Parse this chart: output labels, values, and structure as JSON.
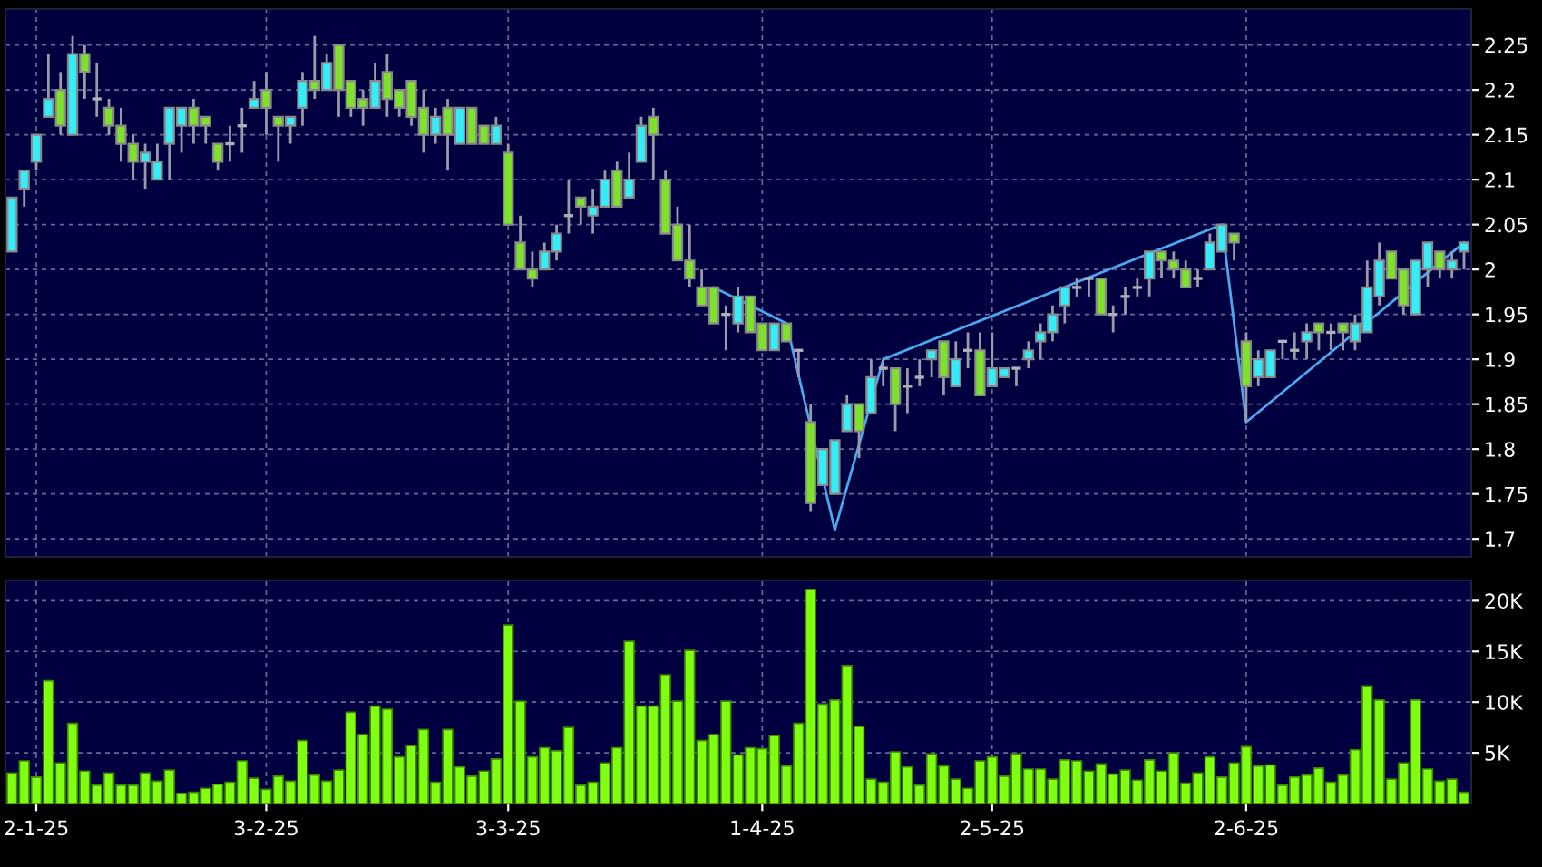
{
  "chart_data": [
    {
      "type": "candlestick",
      "categories": [
        null,
        null,
        null,
        null,
        null,
        null,
        null,
        null,
        null,
        null,
        null,
        null,
        null,
        null,
        null,
        null,
        null,
        null,
        null,
        null,
        null,
        null,
        null,
        null,
        null,
        null,
        null,
        null,
        null,
        null,
        null,
        null,
        null,
        null,
        null,
        null,
        null,
        null,
        null,
        null,
        null,
        null,
        null,
        null,
        null,
        null,
        null,
        null,
        null,
        null,
        null,
        null,
        null,
        null,
        null,
        null,
        null,
        null,
        null,
        null,
        null,
        null,
        null,
        null,
        null,
        null,
        null,
        null,
        null,
        null,
        null,
        null,
        null,
        null,
        null,
        null,
        null,
        null,
        null,
        null,
        null,
        null,
        null,
        null,
        null,
        null,
        null,
        null,
        null,
        null,
        null,
        null,
        null,
        null,
        null,
        null,
        null,
        null,
        null,
        null,
        null,
        null,
        null,
        null,
        null,
        null,
        null,
        null,
        null,
        null,
        null,
        null,
        null,
        null,
        null,
        null,
        null,
        null,
        null,
        null,
        null
      ],
      "ohlc": [
        [
          2.02,
          2.08,
          2.02,
          2.08
        ],
        [
          2.09,
          2.11,
          2.07,
          2.11
        ],
        [
          2.12,
          2.15,
          2.11,
          2.15
        ],
        [
          2.17,
          2.24,
          2.17,
          2.19
        ],
        [
          2.2,
          2.22,
          2.15,
          2.16
        ],
        [
          2.15,
          2.26,
          2.15,
          2.24
        ],
        [
          2.24,
          2.25,
          2.19,
          2.22
        ],
        [
          2.19,
          2.23,
          2.17,
          2.19
        ],
        [
          2.18,
          2.19,
          2.15,
          2.16
        ],
        [
          2.16,
          2.18,
          2.12,
          2.14
        ],
        [
          2.14,
          2.15,
          2.1,
          2.12
        ],
        [
          2.12,
          2.14,
          2.09,
          2.13
        ],
        [
          2.1,
          2.14,
          2.1,
          2.12
        ],
        [
          2.14,
          2.18,
          2.1,
          2.18
        ],
        [
          2.16,
          2.18,
          2.13,
          2.18
        ],
        [
          2.18,
          2.19,
          2.14,
          2.16
        ],
        [
          2.17,
          2.17,
          2.14,
          2.16
        ],
        [
          2.14,
          2.14,
          2.11,
          2.12
        ],
        [
          2.14,
          2.16,
          2.12,
          2.14
        ],
        [
          2.16,
          2.18,
          2.13,
          2.16
        ],
        [
          2.18,
          2.21,
          2.18,
          2.19
        ],
        [
          2.2,
          2.22,
          2.15,
          2.18
        ],
        [
          2.17,
          2.17,
          2.12,
          2.16
        ],
        [
          2.16,
          2.17,
          2.14,
          2.17
        ],
        [
          2.18,
          2.22,
          2.16,
          2.21
        ],
        [
          2.21,
          2.26,
          2.19,
          2.2
        ],
        [
          2.2,
          2.24,
          2.2,
          2.23
        ],
        [
          2.25,
          2.25,
          2.17,
          2.2
        ],
        [
          2.21,
          2.21,
          2.17,
          2.18
        ],
        [
          2.19,
          2.2,
          2.16,
          2.18
        ],
        [
          2.18,
          2.23,
          2.18,
          2.21
        ],
        [
          2.22,
          2.24,
          2.17,
          2.19
        ],
        [
          2.2,
          2.2,
          2.17,
          2.18
        ],
        [
          2.21,
          2.21,
          2.16,
          2.17
        ],
        [
          2.18,
          2.2,
          2.13,
          2.15
        ],
        [
          2.15,
          2.18,
          2.14,
          2.17
        ],
        [
          2.18,
          2.19,
          2.11,
          2.15
        ],
        [
          2.14,
          2.18,
          2.14,
          2.18
        ],
        [
          2.18,
          2.18,
          2.14,
          2.14
        ],
        [
          2.16,
          2.16,
          2.14,
          2.14
        ],
        [
          2.14,
          2.17,
          2.14,
          2.16
        ],
        [
          2.13,
          2.14,
          2.05,
          2.05
        ],
        [
          2.03,
          2.06,
          2.0,
          2.0
        ],
        [
          2.0,
          2.02,
          1.98,
          1.99
        ],
        [
          2.0,
          2.03,
          2.0,
          2.02
        ],
        [
          2.02,
          2.05,
          2.01,
          2.04
        ],
        [
          2.06,
          2.1,
          2.04,
          2.06
        ],
        [
          2.08,
          2.08,
          2.05,
          2.07
        ],
        [
          2.06,
          2.09,
          2.04,
          2.07
        ],
        [
          2.07,
          2.11,
          2.07,
          2.1
        ],
        [
          2.11,
          2.12,
          2.07,
          2.07
        ],
        [
          2.08,
          2.13,
          2.08,
          2.1
        ],
        [
          2.12,
          2.17,
          2.12,
          2.16
        ],
        [
          2.17,
          2.18,
          2.1,
          2.15
        ],
        [
          2.1,
          2.11,
          2.04,
          2.04
        ],
        [
          2.05,
          2.07,
          2.01,
          2.01
        ],
        [
          2.01,
          2.05,
          1.98,
          1.99
        ],
        [
          1.98,
          2.0,
          1.96,
          1.96
        ],
        [
          1.98,
          1.98,
          1.94,
          1.94
        ],
        [
          1.95,
          1.96,
          1.91,
          1.95
        ],
        [
          1.94,
          1.98,
          1.93,
          1.97
        ],
        [
          1.97,
          1.97,
          1.93,
          1.93
        ],
        [
          1.94,
          1.94,
          1.91,
          1.91
        ],
        [
          1.91,
          1.94,
          1.91,
          1.94
        ],
        [
          1.94,
          1.94,
          1.92,
          1.92
        ],
        [
          1.91,
          1.91,
          1.88,
          1.91
        ],
        [
          1.83,
          1.85,
          1.73,
          1.74
        ],
        [
          1.76,
          1.8,
          1.76,
          1.8
        ],
        [
          1.75,
          1.81,
          1.75,
          1.81
        ],
        [
          1.82,
          1.86,
          1.82,
          1.85
        ],
        [
          1.85,
          1.85,
          1.79,
          1.82
        ],
        [
          1.84,
          1.9,
          1.84,
          1.88
        ],
        [
          1.89,
          1.9,
          1.87,
          1.89
        ],
        [
          1.89,
          1.89,
          1.82,
          1.85
        ],
        [
          1.87,
          1.89,
          1.84,
          1.87
        ],
        [
          1.88,
          1.9,
          1.87,
          1.88
        ],
        [
          1.9,
          1.91,
          1.88,
          1.91
        ],
        [
          1.92,
          1.92,
          1.86,
          1.88
        ],
        [
          1.87,
          1.92,
          1.87,
          1.9
        ],
        [
          1.91,
          1.93,
          1.89,
          1.91
        ],
        [
          1.91,
          1.93,
          1.86,
          1.86
        ],
        [
          1.87,
          1.93,
          1.87,
          1.89
        ],
        [
          1.88,
          1.89,
          1.88,
          1.89
        ],
        [
          1.89,
          1.89,
          1.87,
          1.89
        ],
        [
          1.9,
          1.92,
          1.89,
          1.91
        ],
        [
          1.92,
          1.94,
          1.9,
          1.93
        ],
        [
          1.93,
          1.96,
          1.92,
          1.95
        ],
        [
          1.96,
          1.98,
          1.94,
          1.98
        ],
        [
          1.98,
          1.99,
          1.97,
          1.98
        ],
        [
          1.99,
          1.99,
          1.97,
          1.99
        ],
        [
          1.99,
          1.99,
          1.95,
          1.95
        ],
        [
          1.95,
          1.96,
          1.93,
          1.95
        ],
        [
          1.97,
          1.98,
          1.95,
          1.97
        ],
        [
          1.98,
          1.99,
          1.97,
          1.98
        ],
        [
          1.99,
          2.02,
          1.97,
          2.02
        ],
        [
          2.02,
          2.02,
          1.99,
          2.01
        ],
        [
          2.01,
          2.02,
          1.99,
          2.0
        ],
        [
          2.0,
          2.01,
          1.98,
          1.98
        ],
        [
          1.99,
          2.0,
          1.98,
          1.99
        ],
        [
          2.0,
          2.04,
          2.0,
          2.03
        ],
        [
          2.02,
          2.05,
          2.02,
          2.05
        ],
        [
          2.04,
          2.04,
          2.01,
          2.03
        ],
        [
          1.92,
          1.93,
          1.83,
          1.87
        ],
        [
          1.88,
          1.91,
          1.87,
          1.9
        ],
        [
          1.88,
          1.91,
          1.88,
          1.91
        ],
        [
          1.92,
          1.92,
          1.9,
          1.92
        ],
        [
          1.91,
          1.93,
          1.9,
          1.91
        ],
        [
          1.92,
          1.94,
          1.9,
          1.93
        ],
        [
          1.94,
          1.94,
          1.91,
          1.93
        ],
        [
          1.93,
          1.94,
          1.91,
          1.93
        ],
        [
          1.94,
          1.94,
          1.91,
          1.93
        ],
        [
          1.92,
          1.95,
          1.91,
          1.94
        ],
        [
          1.93,
          2.01,
          1.93,
          1.98
        ],
        [
          1.97,
          2.03,
          1.96,
          2.01
        ],
        [
          2.02,
          2.02,
          1.99,
          1.99
        ],
        [
          2.0,
          2.0,
          1.95,
          1.96
        ],
        [
          1.95,
          2.01,
          1.95,
          2.01
        ],
        [
          2.0,
          2.03,
          1.98,
          2.03
        ],
        [
          2.02,
          2.02,
          1.99,
          2.0
        ],
        [
          2.0,
          2.02,
          1.99,
          2.01
        ],
        [
          2.02,
          2.03,
          2.0,
          2.03
        ]
      ],
      "colors": [
        "#33eef8",
        "#33eef8",
        "#33eef8",
        "#33eef8",
        "#7ee22a",
        "#33eef8",
        "#7ee22a",
        "#b0b0b8",
        "#7ee22a",
        "#7ee22a",
        "#7ee22a",
        "#33eef8",
        "#33eef8",
        "#33eef8",
        "#33eef8",
        "#7ee22a",
        "#7ee22a",
        "#7ee22a",
        "#b0b0b8",
        "#b0b0b8",
        "#33eef8",
        "#7ee22a",
        "#7ee22a",
        "#33eef8",
        "#33eef8",
        "#7ee22a",
        "#33eef8",
        "#7ee22a",
        "#7ee22a",
        "#7ee22a",
        "#33eef8",
        "#7ee22a",
        "#7ee22a",
        "#7ee22a",
        "#7ee22a",
        "#33eef8",
        "#7ee22a",
        "#33eef8",
        "#7ee22a",
        "#7ee22a",
        "#33eef8",
        "#7ee22a",
        "#7ee22a",
        "#7ee22a",
        "#33eef8",
        "#33eef8",
        "#b0b0b8",
        "#7ee22a",
        "#33eef8",
        "#33eef8",
        "#7ee22a",
        "#33eef8",
        "#33eef8",
        "#7ee22a",
        "#7ee22a",
        "#7ee22a",
        "#7ee22a",
        "#7ee22a",
        "#7ee22a",
        "#b0b0b8",
        "#33eef8",
        "#7ee22a",
        "#7ee22a",
        "#33eef8",
        "#7ee22a",
        "#b0b0b8",
        "#7ee22a",
        "#33eef8",
        "#33eef8",
        "#33eef8",
        "#7ee22a",
        "#33eef8",
        "#b0b0b8",
        "#7ee22a",
        "#b0b0b8",
        "#b0b0b8",
        "#33eef8",
        "#7ee22a",
        "#33eef8",
        "#b0b0b8",
        "#7ee22a",
        "#33eef8",
        "#33eef8",
        "#b0b0b8",
        "#33eef8",
        "#33eef8",
        "#33eef8",
        "#33eef8",
        "#b0b0b8",
        "#b0b0b8",
        "#7ee22a",
        "#b0b0b8",
        "#b0b0b8",
        "#b0b0b8",
        "#33eef8",
        "#7ee22a",
        "#7ee22a",
        "#7ee22a",
        "#b0b0b8",
        "#33eef8",
        "#33eef8",
        "#7ee22a",
        "#7ee22a",
        "#33eef8",
        "#33eef8",
        "#b0b0b8",
        "#b0b0b8",
        "#33eef8",
        "#7ee22a",
        "#b0b0b8",
        "#7ee22a",
        "#33eef8",
        "#33eef8",
        "#33eef8",
        "#7ee22a",
        "#7ee22a",
        "#33eef8",
        "#33eef8",
        "#7ee22a",
        "#33eef8",
        "#33eef8"
      ],
      "series": [
        {
          "type": "line",
          "values": [
            null,
            null,
            null,
            null,
            null,
            null,
            null,
            null,
            null,
            null,
            null,
            null,
            null,
            null,
            null,
            null,
            null,
            null,
            null,
            null,
            null,
            null,
            null,
            null,
            null,
            null,
            null,
            null,
            null,
            null,
            null,
            null,
            null,
            null,
            null,
            null,
            null,
            null,
            null,
            null,
            null,
            null,
            null,
            null,
            null,
            null,
            null,
            null,
            null,
            null,
            null,
            null,
            null,
            null,
            null,
            null,
            null,
            null,
            1.98,
            null,
            null,
            null,
            null,
            null,
            1.94,
            null,
            null,
            null,
            1.71,
            null,
            null,
            null,
            1.9,
            null,
            null,
            null,
            null,
            null,
            null,
            null,
            null,
            null,
            null,
            null,
            null,
            null,
            null,
            null,
            null,
            null,
            null,
            null,
            null,
            null,
            null,
            null,
            null,
            null,
            null,
            null,
            2.05,
            null,
            1.83,
            null,
            null,
            null,
            null,
            null,
            null,
            null,
            null,
            null,
            null,
            null,
            null,
            null,
            null,
            null,
            null,
            null,
            2.03
          ],
          "color": "#4aa8f0"
        }
      ],
      "ylim": [
        1.68,
        2.29
      ],
      "yticks": [
        1.7,
        1.75,
        1.8,
        1.85,
        1.9,
        1.95,
        2,
        2.05,
        2.1,
        2.15,
        2.2,
        2.25
      ],
      "grid": true
    },
    {
      "type": "bar",
      "categories": [
        null,
        null,
        "2-1-25",
        null,
        null,
        null,
        null,
        null,
        null,
        null,
        null,
        null,
        null,
        null,
        null,
        null,
        null,
        null,
        null,
        null,
        null,
        "3-2-25",
        null,
        null,
        null,
        null,
        null,
        null,
        null,
        null,
        null,
        null,
        null,
        null,
        null,
        null,
        null,
        null,
        null,
        null,
        null,
        "3-3-25",
        null,
        null,
        null,
        null,
        null,
        null,
        null,
        null,
        null,
        null,
        null,
        null,
        null,
        null,
        null,
        null,
        null,
        null,
        null,
        null,
        "1-4-25",
        null,
        null,
        null,
        null,
        null,
        null,
        null,
        null,
        null,
        null,
        null,
        null,
        null,
        null,
        null,
        null,
        null,
        null,
        "2-5-25",
        null,
        null,
        null,
        null,
        null,
        null,
        null,
        null,
        null,
        null,
        null,
        null,
        null,
        null,
        null,
        null,
        null,
        null,
        null,
        null,
        "2-6-25",
        null,
        null,
        null,
        null,
        null,
        null,
        null,
        null,
        null,
        null,
        null,
        null,
        null,
        null,
        null,
        null,
        null,
        null
      ],
      "values": [
        3000,
        4200,
        2600,
        12100,
        4000,
        7900,
        3200,
        1800,
        3000,
        1800,
        1800,
        3000,
        2200,
        3300,
        1000,
        1100,
        1500,
        1900,
        2100,
        4200,
        2500,
        1400,
        2700,
        2200,
        6200,
        2800,
        2200,
        3300,
        9000,
        6800,
        9600,
        9300,
        4600,
        5700,
        7300,
        2100,
        7300,
        3600,
        2700,
        3200,
        4400,
        17600,
        10100,
        4600,
        5500,
        5200,
        7500,
        1800,
        2100,
        4000,
        5500,
        16000,
        9600,
        9600,
        12700,
        10100,
        15100,
        6200,
        6800,
        10100,
        4800,
        5500,
        5400,
        6700,
        3700,
        7900,
        21100,
        9800,
        10200,
        13600,
        7600,
        2400,
        2100,
        5100,
        3600,
        1800,
        4900,
        3700,
        2400,
        1500,
        4200,
        4600,
        2700,
        4900,
        3400,
        3400,
        2400,
        4300,
        4200,
        3200,
        3900,
        2900,
        3300,
        2300,
        4300,
        3200,
        5000,
        2000,
        3000,
        4600,
        2600,
        4000,
        5600,
        3700,
        3800,
        1800,
        2600,
        2800,
        3500,
        2100,
        2800,
        5300,
        11600,
        10200,
        2400,
        4000,
        10200,
        3400,
        2200,
        2400,
        1100
      ],
      "color": "#80ff10",
      "ylim": [
        0,
        22000
      ],
      "yticks": [
        {
          "value": 5000,
          "label": "5K"
        },
        {
          "value": 10000,
          "label": "10K"
        },
        {
          "value": 15000,
          "label": "15K"
        },
        {
          "value": 20000,
          "label": "20K"
        }
      ],
      "grid": true
    }
  ]
}
